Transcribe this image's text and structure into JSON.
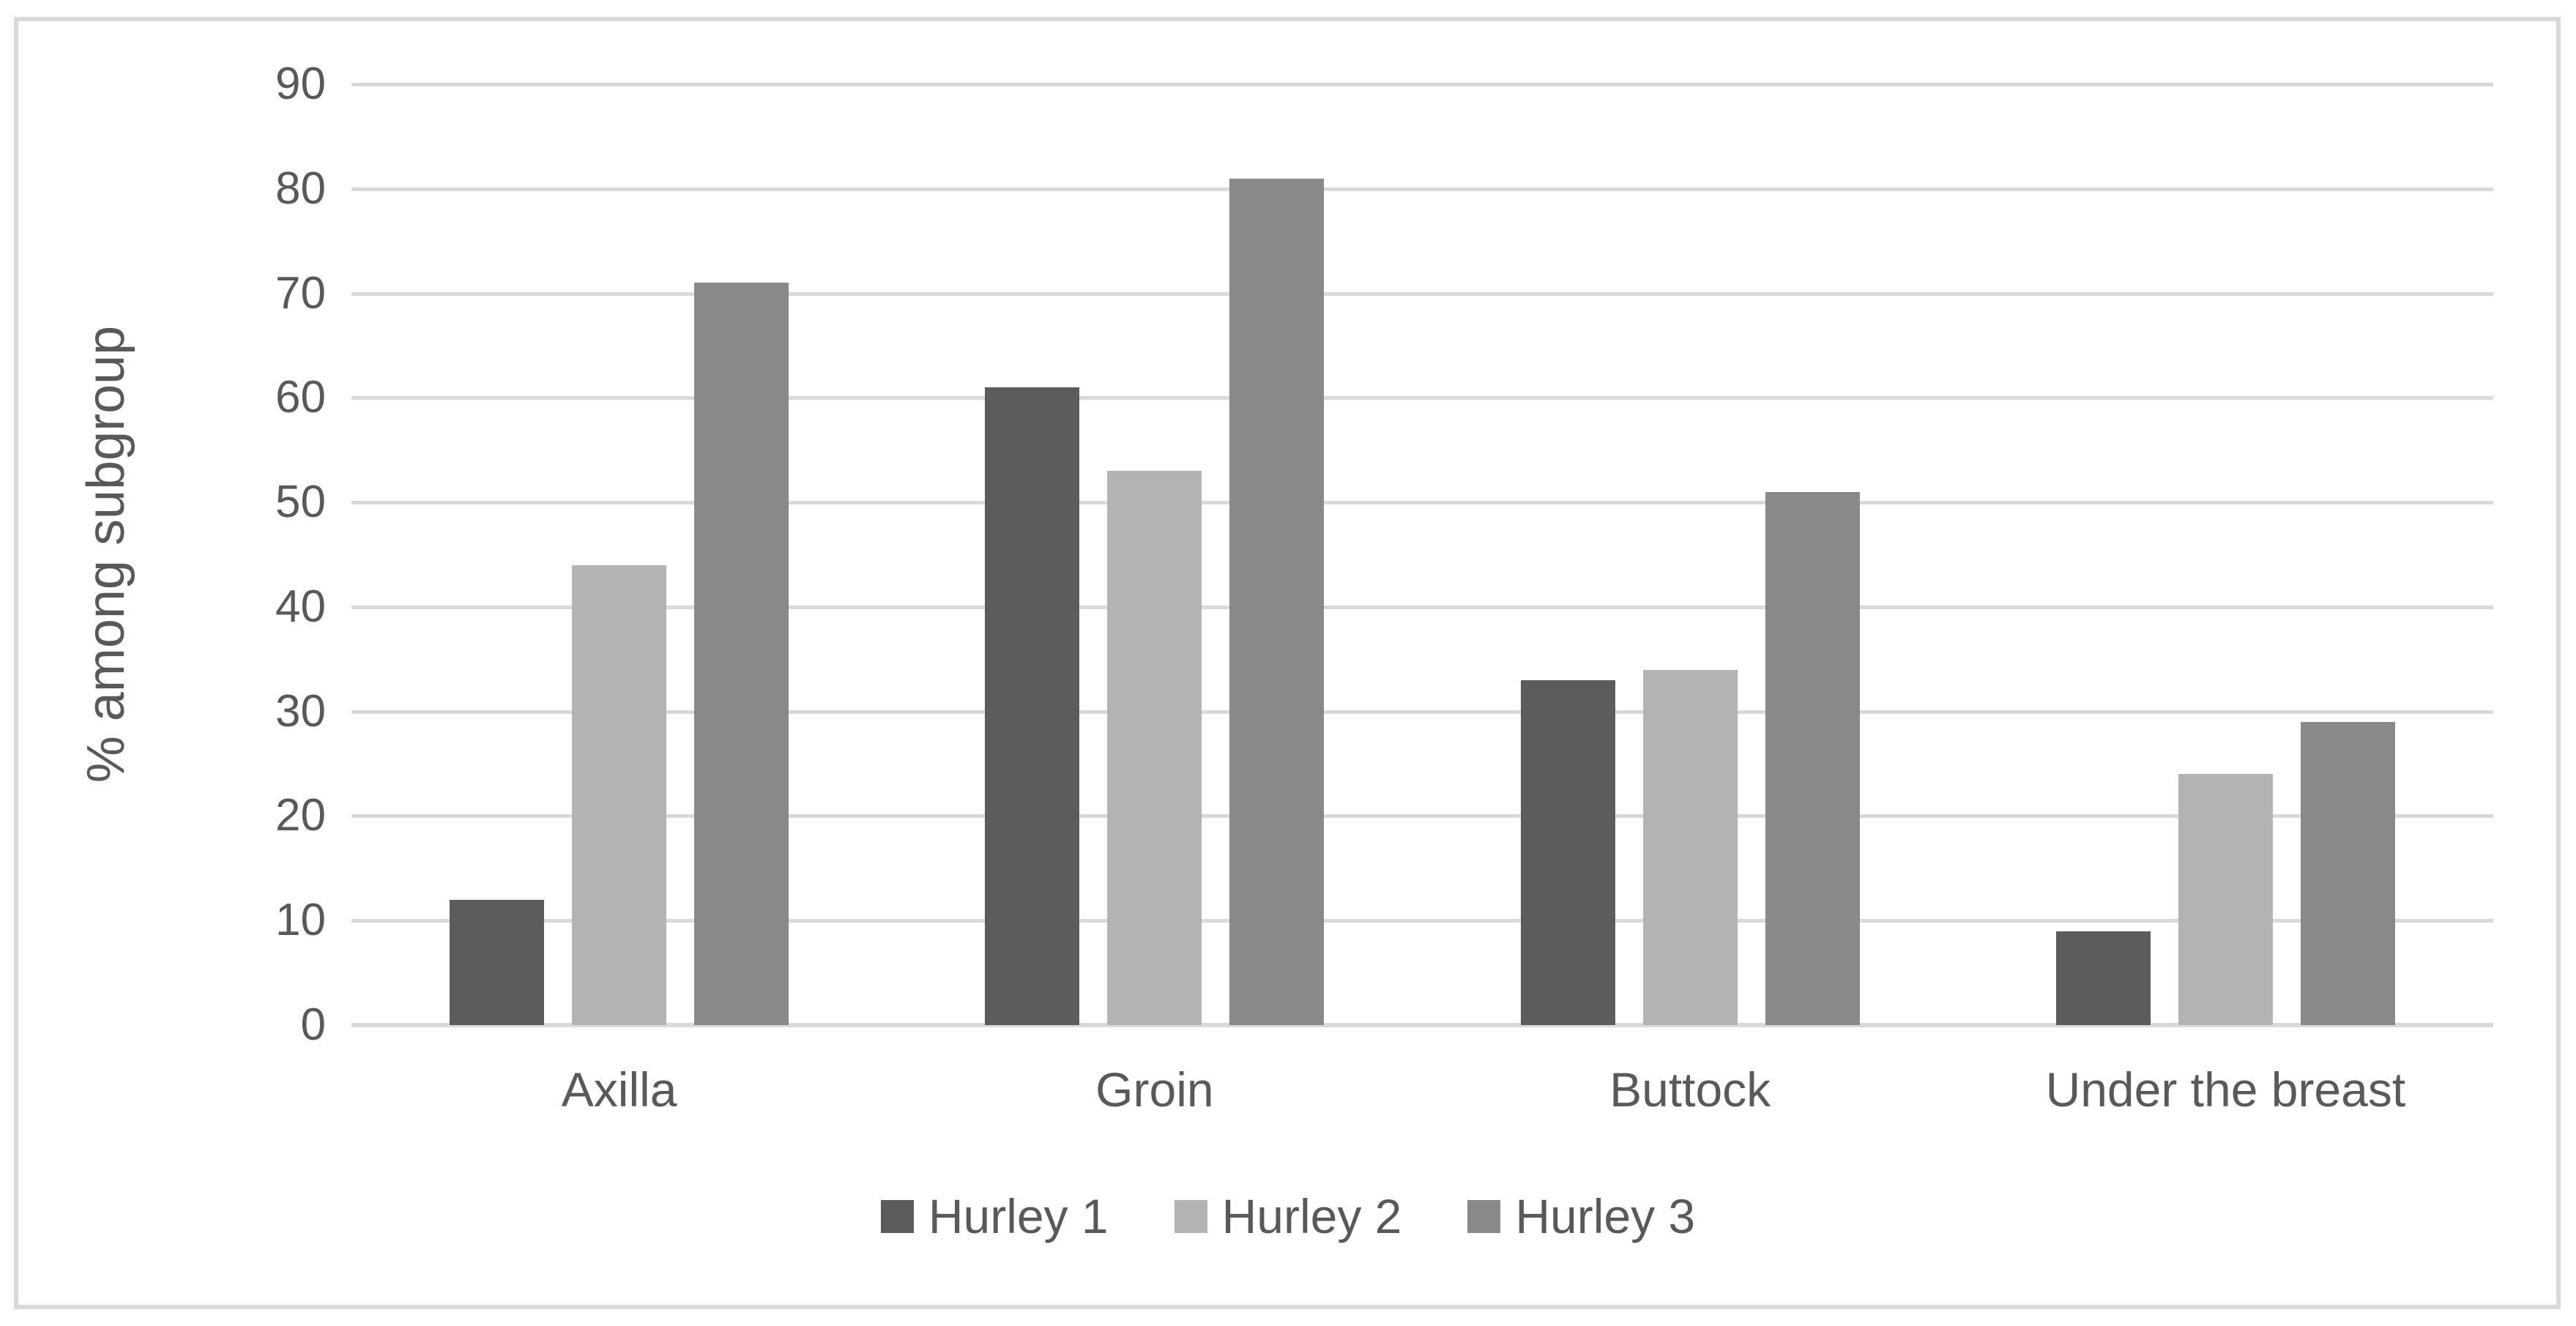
{
  "chart_data": {
    "type": "bar",
    "categories": [
      "Axilla",
      "Groin",
      "Buttock",
      "Under the breast"
    ],
    "series": [
      {
        "name": "Hurley 1",
        "color": "#5c5c5c",
        "values": [
          12,
          61,
          33,
          9
        ]
      },
      {
        "name": "Hurley 2",
        "color": "#b3b3b3",
        "values": [
          44,
          53,
          34,
          24
        ]
      },
      {
        "name": "Hurley 3",
        "color": "#898989",
        "values": [
          71,
          81,
          51,
          29
        ]
      }
    ],
    "title": "",
    "xlabel": "",
    "ylabel": "% among subgroup",
    "ylim": [
      0,
      90
    ],
    "ytick_step": 10,
    "yticks": [
      "0",
      "10",
      "20",
      "30",
      "40",
      "50",
      "60",
      "70",
      "80",
      "90"
    ],
    "grid": true,
    "legend_position": "bottom"
  },
  "colors": {
    "grid": "#d9d9d9",
    "frame_border": "#d9d9d9",
    "text": "#595959",
    "background": "#ffffff"
  }
}
